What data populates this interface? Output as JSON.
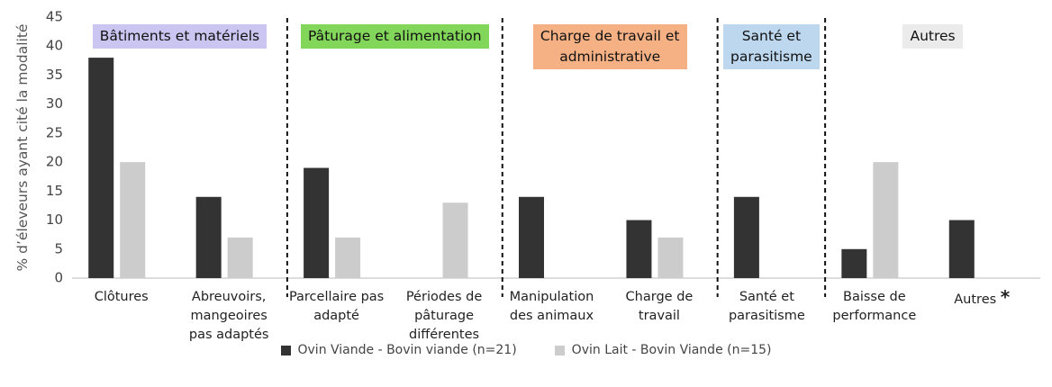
{
  "chart_data": {
    "type": "bar",
    "y_label": "% d’éleveurs ayant cité la modalité",
    "categories": [
      "Clôtures",
      "Abreuvoirs,\nmangeoires\npas adaptés",
      "Parcellaire pas\nadapté",
      "Périodes de\npâturage\ndifférentes",
      "Manipulation\ndes animaux",
      "Charge de\ntravail",
      "Santé et\nparasitisme",
      "Baisse de\nperformance",
      "Autres"
    ],
    "annotation": "*",
    "groups": [
      {
        "label": "Bâtiments et matériels",
        "color": "#cbc5f2",
        "span": 2
      },
      {
        "label": "Pâturage et alimentation",
        "color": "#82d65a",
        "span": 2
      },
      {
        "label": "Charge de travail et\nadministrative",
        "color": "#f5b184",
        "span": 2
      },
      {
        "label": "Santé et\nparasitisme",
        "color": "#bdd7ee",
        "span": 1
      },
      {
        "label": "Autres",
        "color": "#ebebeb",
        "span": 2
      }
    ],
    "series": [
      {
        "name": "Ovin Viande - Bovin viande (n=21)",
        "color": "#333333",
        "values": [
          38,
          14,
          19,
          0,
          14,
          10,
          14,
          5,
          10
        ]
      },
      {
        "name": "Ovin Lait - Bovin Viande (n=15)",
        "color": "#cccccc",
        "values": [
          20,
          7,
          7,
          13,
          0,
          7,
          0,
          20,
          0
        ]
      }
    ],
    "ylim": [
      0,
      45
    ],
    "yticks": [
      0,
      5,
      10,
      15,
      20,
      25,
      30,
      35,
      40,
      45
    ],
    "grid": false,
    "legend": "bottom"
  }
}
